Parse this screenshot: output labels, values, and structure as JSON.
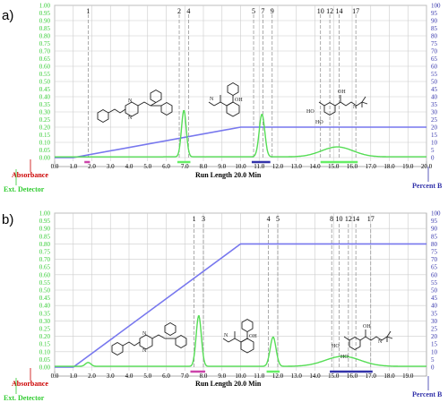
{
  "colors": {
    "green": "#33cc33",
    "bright_green": "#66ee66",
    "blue_grad": "#7777ee",
    "axis_blue": "#3333aa",
    "red": "#cc0000",
    "pink_bar": "#cc44aa",
    "grid": "#cccccc",
    "fraction_line": "#888888",
    "frame": "#999999"
  },
  "chart_data": [
    {
      "panel_label": "a)",
      "type": "line",
      "x_axis": {
        "range": [
          0.0,
          20.0
        ],
        "ticks": [
          "0.0",
          "1.0",
          "2.0",
          "3.0",
          "4.0",
          "5.0",
          "6.0",
          "7.0",
          "8.0",
          "9.0",
          "10.0",
          "11.0",
          "12.0",
          "13.0",
          "14.0",
          "15.0",
          "16.0",
          "17.0",
          "18.0",
          "19.0",
          "20.0"
        ],
        "label": "Run Length 20.0 Min"
      },
      "left_axis": {
        "range": [
          0.0,
          1.0
        ],
        "ticks": [
          "0.00",
          "0.05",
          "0.10",
          "0.15",
          "0.20",
          "0.25",
          "0.30",
          "0.35",
          "0.40",
          "0.45",
          "0.50",
          "0.55",
          "0.60",
          "0.65",
          "0.70",
          "0.75",
          "0.80",
          "0.85",
          "0.90",
          "0.95",
          "1.00"
        ]
      },
      "right_axis": {
        "range": [
          0,
          100
        ],
        "ticks": [
          "0",
          "5",
          "10",
          "15",
          "20",
          "25",
          "30",
          "35",
          "40",
          "45",
          "50",
          "55",
          "60",
          "65",
          "70",
          "75",
          "80",
          "85",
          "90",
          "95",
          "100"
        ],
        "label": "Percent B"
      },
      "absorbance_label": "Absorbance",
      "detector_label": "Ext. Detector",
      "absorbance_series": {
        "baseline": 0.005,
        "peaks": [
          {
            "center": 6.95,
            "height": 0.305,
            "width": 0.13
          },
          {
            "center": 11.15,
            "height": 0.28,
            "width": 0.15
          },
          {
            "center": 15.2,
            "height": 0.065,
            "width": 0.85
          }
        ]
      },
      "gradient_series": {
        "x": [
          0.0,
          1.0,
          10.0,
          20.0
        ],
        "y": [
          0,
          0,
          20,
          20
        ]
      },
      "fraction_markers": [
        {
          "label": "1",
          "x": 1.8
        },
        {
          "label": "2",
          "x": 6.7
        },
        {
          "label": "4",
          "x": 7.2
        },
        {
          "label": "5",
          "x": 10.7
        },
        {
          "label": "7",
          "x": 11.2
        },
        {
          "label": "9",
          "x": 11.7
        },
        {
          "label": "10",
          "x": 14.3
        },
        {
          "label": "12",
          "x": 14.8
        },
        {
          "label": "14",
          "x": 15.3
        },
        {
          "label": "17",
          "x": 16.2
        }
      ],
      "collection_bars": [
        {
          "x_start": 1.6,
          "x_end": 1.9,
          "color": "pink"
        },
        {
          "x_start": 6.6,
          "x_end": 7.3,
          "color": "green"
        },
        {
          "x_start": 10.6,
          "x_end": 11.6,
          "color": "blue"
        },
        {
          "x_start": 14.3,
          "x_end": 16.3,
          "color": "green"
        }
      ]
    },
    {
      "panel_label": "b)",
      "type": "line",
      "x_axis": {
        "range": [
          0.0,
          20.0
        ],
        "ticks": [
          "0.0",
          "1.0",
          "2.0",
          "3.0",
          "4.0",
          "5.0",
          "6.0",
          "7.0",
          "8.0",
          "9.0",
          "10.0",
          "11.0",
          "12.0",
          "13.0",
          "14.0",
          "15.0",
          "16.0",
          "17.0",
          "18.0",
          "19.0"
        ],
        "label": "Run Length 20.0 Min"
      },
      "left_axis": {
        "range": [
          0.0,
          1.0
        ],
        "ticks": [
          "0.00",
          "0.05",
          "0.10",
          "0.15",
          "0.20",
          "0.25",
          "0.30",
          "0.35",
          "0.40",
          "0.45",
          "0.50",
          "0.55",
          "0.60",
          "0.65",
          "0.70",
          "0.75",
          "0.80",
          "0.85",
          "0.90",
          "0.95",
          "1.00"
        ]
      },
      "right_axis": {
        "range": [
          0,
          100
        ],
        "ticks": [
          "0",
          "5",
          "10",
          "15",
          "20",
          "25",
          "30",
          "35",
          "40",
          "45",
          "50",
          "55",
          "60",
          "65",
          "70",
          "75",
          "80",
          "85",
          "90",
          "95",
          "100"
        ],
        "label": "Percent B"
      },
      "absorbance_label": "Absorbance",
      "detector_label": "Ext. Detector",
      "absorbance_series": {
        "baseline": 0.005,
        "peaks": [
          {
            "center": 1.8,
            "height": 0.025,
            "width": 0.15
          },
          {
            "center": 7.75,
            "height": 0.33,
            "width": 0.14
          },
          {
            "center": 11.75,
            "height": 0.19,
            "width": 0.16
          },
          {
            "center": 15.5,
            "height": 0.065,
            "width": 0.95
          }
        ]
      },
      "gradient_series": {
        "x": [
          0.0,
          1.0,
          10.0,
          20.0
        ],
        "y": [
          0,
          0,
          80,
          80
        ]
      },
      "fraction_markers": [
        {
          "label": "1",
          "x": 7.5
        },
        {
          "label": "3",
          "x": 8.0
        },
        {
          "label": "4",
          "x": 11.5
        },
        {
          "label": "5",
          "x": 12.0
        },
        {
          "label": "8",
          "x": 14.9
        },
        {
          "label": "10",
          "x": 15.3
        },
        {
          "label": "12",
          "x": 15.8
        },
        {
          "label": "14",
          "x": 16.2
        },
        {
          "label": "17",
          "x": 17.0
        }
      ],
      "collection_bars": [
        {
          "x_start": 7.3,
          "x_end": 8.1,
          "color": "pink"
        },
        {
          "x_start": 11.4,
          "x_end": 12.1,
          "color": "green"
        },
        {
          "x_start": 14.8,
          "x_end": 17.1,
          "color": "blue"
        }
      ]
    }
  ]
}
